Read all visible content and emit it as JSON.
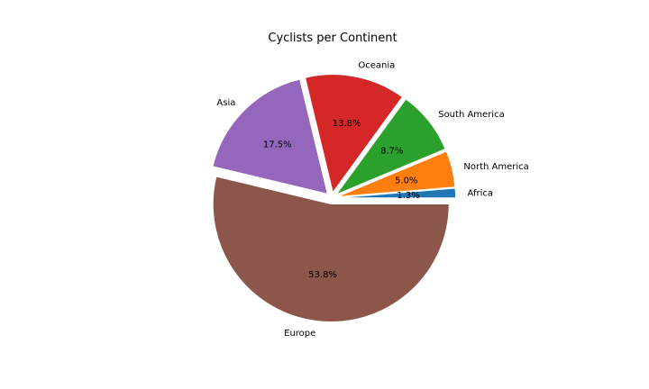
{
  "chart_data": {
    "type": "pie",
    "title": "Cyclists per Continent",
    "slices": [
      {
        "label": "Africa",
        "percent": 1.3,
        "color": "#1f77b4"
      },
      {
        "label": "North America",
        "percent": 5.0,
        "color": "#ff7f0e"
      },
      {
        "label": "South America",
        "percent": 8.7,
        "color": "#2ca02c"
      },
      {
        "label": "Oceania",
        "percent": 13.8,
        "color": "#d62728"
      },
      {
        "label": "Asia",
        "percent": 17.5,
        "color": "#9467bd"
      },
      {
        "label": "Europe",
        "percent": 53.8,
        "color": "#8c564b"
      }
    ],
    "start_angle_deg": 0,
    "direction": "counterclockwise",
    "exploded": true,
    "legend": "none"
  }
}
